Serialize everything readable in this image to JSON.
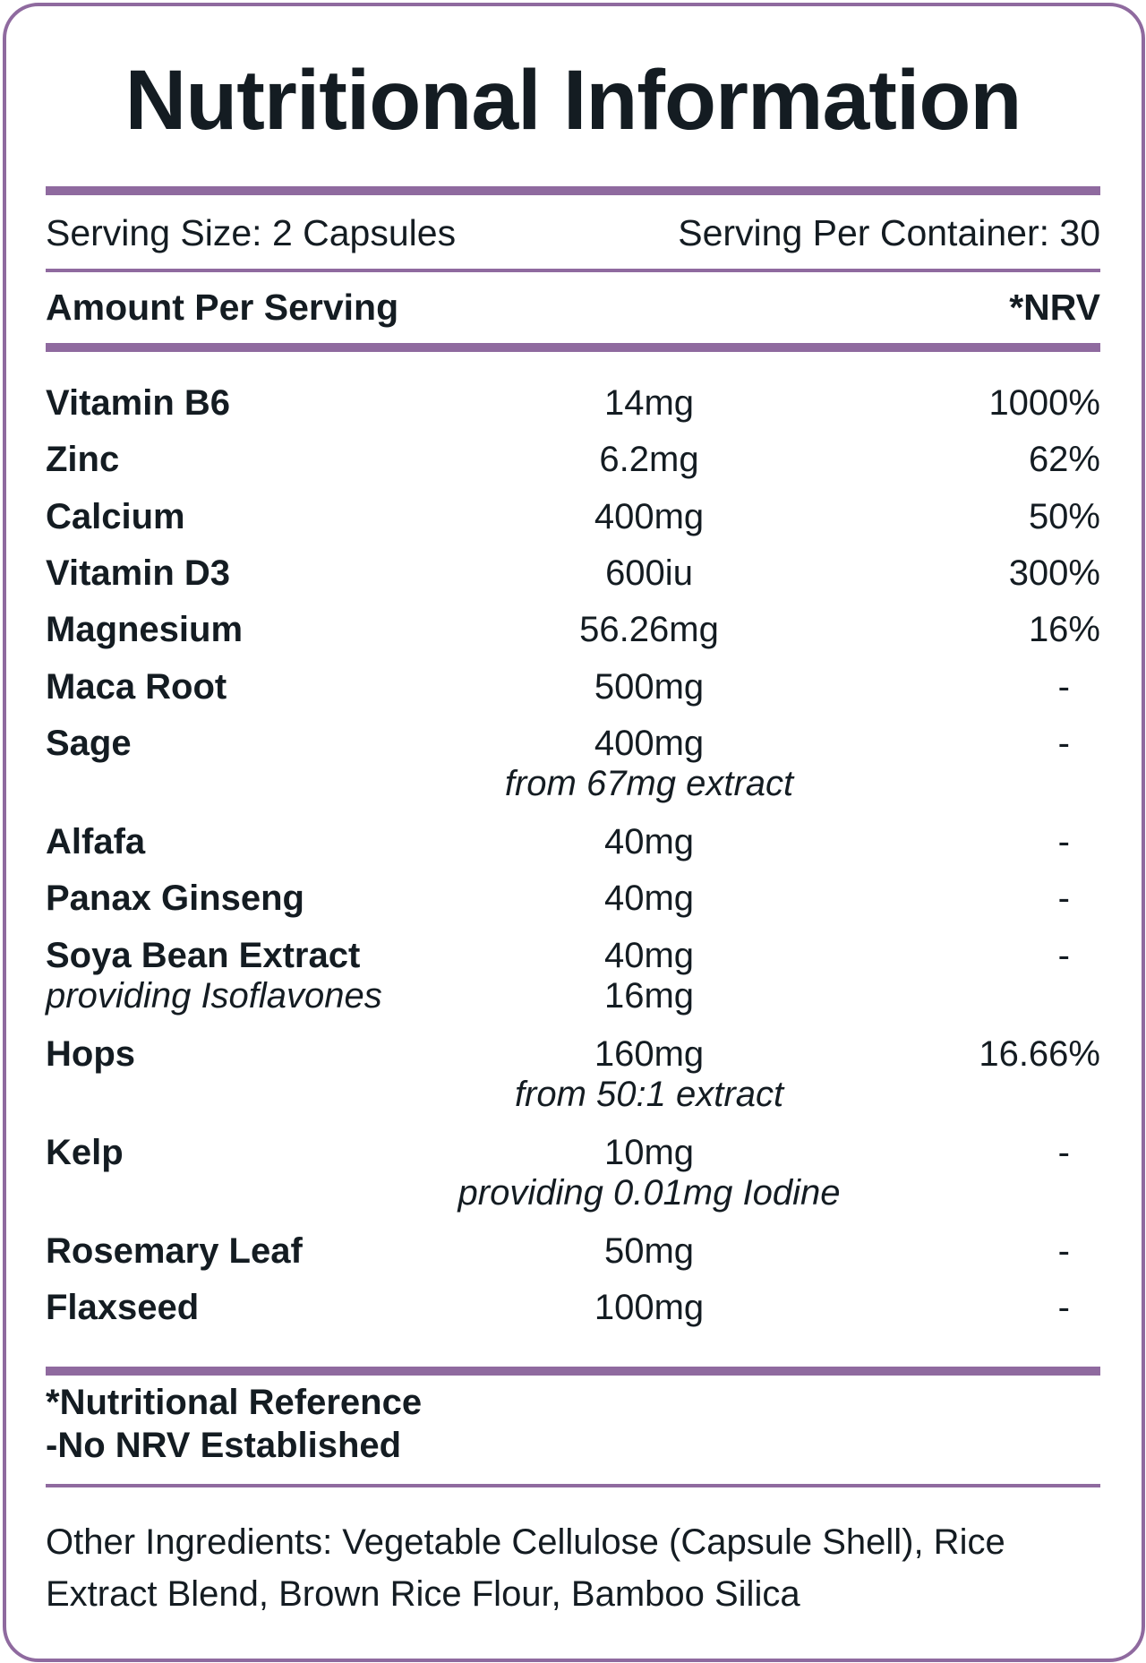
{
  "title": "Nutritional Information",
  "serving": {
    "size": "Serving Size: 2 Capsules",
    "per_container": "Serving Per Container: 30"
  },
  "header": {
    "amount_label": "Amount Per Serving",
    "nrv_label": "*NRV"
  },
  "nutrients": [
    {
      "name": "Vitamin B6",
      "amount": "14mg",
      "nrv": "1000%"
    },
    {
      "name": "Zinc",
      "amount": "6.2mg",
      "nrv": "62%"
    },
    {
      "name": "Calcium",
      "amount": "400mg",
      "nrv": "50%"
    },
    {
      "name": "Vitamin D3",
      "amount": "600iu",
      "nrv": "300%"
    },
    {
      "name": "Magnesium",
      "amount": "56.26mg",
      "nrv": "16%"
    },
    {
      "name": "Maca Root",
      "amount": "500mg",
      "nrv": "-"
    },
    {
      "name": "Sage",
      "amount": "400mg",
      "amount_note": "from 67mg extract",
      "nrv": "-"
    },
    {
      "name": "Alfafa",
      "amount": "40mg",
      "nrv": "-"
    },
    {
      "name": "Panax Ginseng",
      "amount": "40mg",
      "nrv": "-"
    },
    {
      "name": "Soya Bean Extract",
      "name_note": "providing Isoflavones",
      "amount": "40mg",
      "amount_note": "16mg",
      "nrv": "-"
    },
    {
      "name": "Hops",
      "amount": "160mg",
      "amount_note": "from 50:1 extract",
      "nrv": "16.66%"
    },
    {
      "name": "Kelp",
      "amount": "10mg",
      "amount_note": "providing 0.01mg Iodine",
      "nrv": "-"
    },
    {
      "name": "Rosemary Leaf",
      "amount": "50mg",
      "nrv": "-"
    },
    {
      "name": "Flaxseed",
      "amount": "100mg",
      "nrv": "-"
    }
  ],
  "footnotes": {
    "nrv_definition": "*Nutritional Reference",
    "no_nrv": "-No NRV Established"
  },
  "other_ingredients": {
    "text": "Other Ingredients: Vegetable Cellulose (Capsule Shell), Rice Extract Blend, Brown Rice Flour, Bamboo Silica"
  },
  "colors": {
    "accent": "#8f6a9f",
    "text": "#141c22"
  }
}
